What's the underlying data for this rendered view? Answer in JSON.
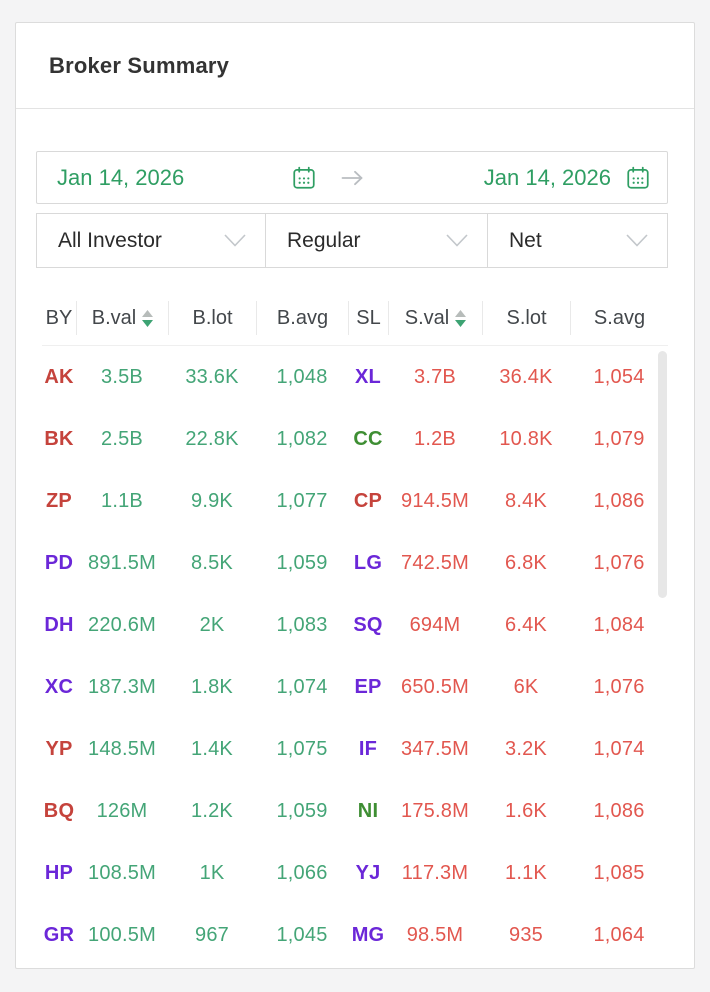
{
  "title": "Broker Summary",
  "date_range": {
    "start": "Jan 14, 2026",
    "end": "Jan 14, 2026"
  },
  "filters": [
    {
      "value": "All Investor"
    },
    {
      "value": "Regular"
    },
    {
      "value": "Net"
    }
  ],
  "table": {
    "columns": [
      {
        "key": "by",
        "label": "BY",
        "sortable": false
      },
      {
        "key": "bval",
        "label": "B.val",
        "sortable": true,
        "sort_direction": "desc"
      },
      {
        "key": "blot",
        "label": "B.lot",
        "sortable": false
      },
      {
        "key": "bavg",
        "label": "B.avg",
        "sortable": false
      },
      {
        "key": "sl",
        "label": "SL",
        "sortable": false
      },
      {
        "key": "sval",
        "label": "S.val",
        "sortable": true,
        "sort_direction": "desc"
      },
      {
        "key": "slot",
        "label": "S.lot",
        "sortable": false
      },
      {
        "key": "savg",
        "label": "S.avg",
        "sortable": false
      }
    ],
    "rows": [
      {
        "by": {
          "code": "AK",
          "color": "red"
        },
        "bval": "3.5B",
        "blot": "33.6K",
        "bavg": "1,048",
        "sl": {
          "code": "XL",
          "color": "purple"
        },
        "sval": "3.7B",
        "slot": "36.4K",
        "savg": "1,054"
      },
      {
        "by": {
          "code": "BK",
          "color": "red"
        },
        "bval": "2.5B",
        "blot": "22.8K",
        "bavg": "1,082",
        "sl": {
          "code": "CC",
          "color": "green"
        },
        "sval": "1.2B",
        "slot": "10.8K",
        "savg": "1,079"
      },
      {
        "by": {
          "code": "ZP",
          "color": "red"
        },
        "bval": "1.1B",
        "blot": "9.9K",
        "bavg": "1,077",
        "sl": {
          "code": "CP",
          "color": "red"
        },
        "sval": "914.5M",
        "slot": "8.4K",
        "savg": "1,086"
      },
      {
        "by": {
          "code": "PD",
          "color": "purple"
        },
        "bval": "891.5M",
        "blot": "8.5K",
        "bavg": "1,059",
        "sl": {
          "code": "LG",
          "color": "purple"
        },
        "sval": "742.5M",
        "slot": "6.8K",
        "savg": "1,076"
      },
      {
        "by": {
          "code": "DH",
          "color": "purple"
        },
        "bval": "220.6M",
        "blot": "2K",
        "bavg": "1,083",
        "sl": {
          "code": "SQ",
          "color": "purple"
        },
        "sval": "694M",
        "slot": "6.4K",
        "savg": "1,084"
      },
      {
        "by": {
          "code": "XC",
          "color": "purple"
        },
        "bval": "187.3M",
        "blot": "1.8K",
        "bavg": "1,074",
        "sl": {
          "code": "EP",
          "color": "purple"
        },
        "sval": "650.5M",
        "slot": "6K",
        "savg": "1,076"
      },
      {
        "by": {
          "code": "YP",
          "color": "red"
        },
        "bval": "148.5M",
        "blot": "1.4K",
        "bavg": "1,075",
        "sl": {
          "code": "IF",
          "color": "purple"
        },
        "sval": "347.5M",
        "slot": "3.2K",
        "savg": "1,074"
      },
      {
        "by": {
          "code": "BQ",
          "color": "red"
        },
        "bval": "126M",
        "blot": "1.2K",
        "bavg": "1,059",
        "sl": {
          "code": "NI",
          "color": "green"
        },
        "sval": "175.8M",
        "slot": "1.6K",
        "savg": "1,086"
      },
      {
        "by": {
          "code": "HP",
          "color": "purple"
        },
        "bval": "108.5M",
        "blot": "1K",
        "bavg": "1,066",
        "sl": {
          "code": "YJ",
          "color": "purple"
        },
        "sval": "117.3M",
        "slot": "1.1K",
        "savg": "1,085"
      },
      {
        "by": {
          "code": "GR",
          "color": "purple"
        },
        "bval": "100.5M",
        "blot": "967",
        "bavg": "1,045",
        "sl": {
          "code": "MG",
          "color": "purple"
        },
        "sval": "98.5M",
        "slot": "935",
        "savg": "1,064"
      }
    ]
  },
  "icons": {
    "calendar": "calendar-icon",
    "arrow": "arrow-right-icon",
    "chevron": "chevron-down-icon",
    "sort": "sort-icon"
  },
  "colors": {
    "accent_green": "#2f9e63",
    "buy_value": "#44a577",
    "sell_value": "#e2574f",
    "code_red": "#c5433c",
    "code_purple": "#6b27d8",
    "code_green": "#3e8e33",
    "sort_active": "#3da373",
    "sort_inactive": "#b7bcba"
  }
}
